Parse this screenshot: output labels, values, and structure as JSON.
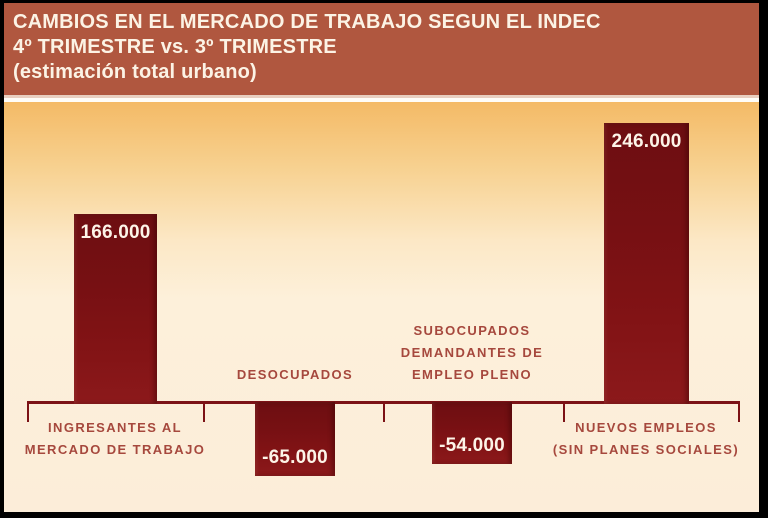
{
  "header": {
    "title": "CAMBIOS EN EL MERCADO DE TRABAJO SEGUN EL INDEC",
    "subtitle": "4º TRIMESTRE vs. 3º TRIMESTRE",
    "note": "(estimación total urbano)"
  },
  "chart_data": {
    "type": "bar",
    "title": "CAMBIOS EN EL MERCADO DE TRABAJO SEGUN EL INDEC",
    "subtitle": "4º TRIMESTRE vs. 3º TRIMESTRE (estimación total urbano)",
    "categories": [
      "INGRESANTES AL MERCADO DE TRABAJO",
      "DESOCUPADOS",
      "SUBOCUPADOS DEMANDANTES DE EMPLEO PLENO",
      "NUEVOS EMPLEOS (SIN PLANES SOCIALES)"
    ],
    "category_lines": [
      [
        "INGRESANTES AL",
        "MERCADO DE TRABAJO"
      ],
      [
        "DESOCUPADOS"
      ],
      [
        "SUBOCUPADOS",
        "DEMANDANTES DE",
        "EMPLEO PLENO"
      ],
      [
        "NUEVOS EMPLEOS",
        "(SIN PLANES SOCIALES)"
      ]
    ],
    "category_label_position": [
      "below",
      "above",
      "above",
      "below"
    ],
    "values": [
      166000,
      -65000,
      -54000,
      246000
    ],
    "value_labels": [
      "166.000",
      "-65.000",
      "-54.000",
      "246.000"
    ],
    "ylim": [
      -75000,
      260000
    ],
    "grid": false,
    "legend": "none",
    "xlabel": "",
    "ylabel": "",
    "bar_color": "#7a1013",
    "value_label_color": "#fdf4e8",
    "category_label_color": "#a6483d",
    "axis_color": "#7c1216"
  },
  "colors": {
    "frame_border": "#000000",
    "header_bg": "#b0573f",
    "header_text": "#fcf3e5",
    "separator_pink": "#e9cfc0",
    "separator_white": "#fffdf8",
    "background_top": "#f4ba66",
    "background_bottom": "#fdf0dd"
  }
}
